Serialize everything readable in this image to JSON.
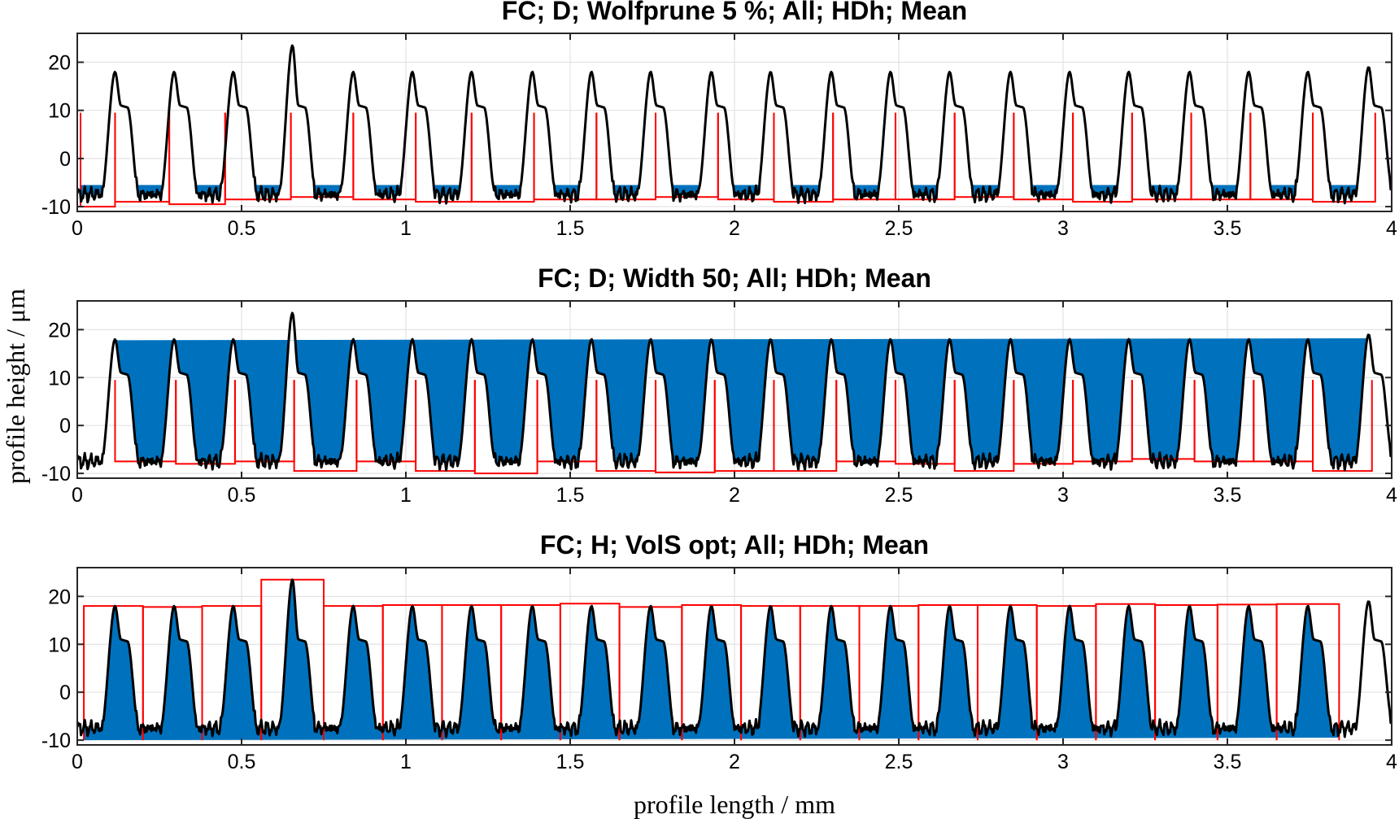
{
  "figure": {
    "ylabel": "profile height / μm",
    "xlabel": "profile length / mm"
  },
  "chart_data": [
    {
      "type": "line",
      "title": "FC; D; Wolfprune 5 %; All; HDh; Mean",
      "xlim": [
        0,
        4
      ],
      "ylim": [
        -11,
        26
      ],
      "xticks": [
        "0",
        "0.5",
        "1",
        "1.5",
        "2",
        "2.5",
        "3",
        "3.5",
        "4"
      ],
      "yticks": [
        "20",
        "10",
        "0",
        "-10"
      ],
      "grid": true,
      "fill": "dales",
      "profile": {
        "peak_x": [
          0.115,
          0.295,
          0.475,
          0.655,
          0.84,
          1.02,
          1.2,
          1.385,
          1.565,
          1.745,
          1.93,
          2.11,
          2.295,
          2.475,
          2.655,
          2.84,
          3.02,
          3.2,
          3.385,
          3.565,
          3.745,
          3.93
        ],
        "peak_height": [
          18,
          18,
          18,
          23.5,
          18,
          18,
          18,
          18,
          18,
          18,
          18,
          18,
          18,
          18,
          18,
          18,
          18,
          18,
          18,
          18,
          18,
          19
        ],
        "shoulder_height": 11,
        "valley_height": -7.5
      },
      "segments": [
        {
          "x0": 0.01,
          "x1": 0.115,
          "level": -10
        },
        {
          "x0": 0.115,
          "x1": 0.28,
          "level": -9
        },
        {
          "x0": 0.28,
          "x1": 0.45,
          "level": -9.5
        },
        {
          "x0": 0.45,
          "x1": 0.65,
          "level": -8.5
        },
        {
          "x0": 0.65,
          "x1": 0.84,
          "level": -8
        },
        {
          "x0": 0.84,
          "x1": 1.03,
          "level": -8.5
        },
        {
          "x0": 1.03,
          "x1": 1.2,
          "level": -9
        },
        {
          "x0": 1.2,
          "x1": 1.39,
          "level": -9
        },
        {
          "x0": 1.39,
          "x1": 1.58,
          "level": -8.5
        },
        {
          "x0": 1.58,
          "x1": 1.76,
          "level": -8.5
        },
        {
          "x0": 1.76,
          "x1": 1.95,
          "level": -8
        },
        {
          "x0": 1.95,
          "x1": 2.12,
          "level": -8.5
        },
        {
          "x0": 2.12,
          "x1": 2.3,
          "level": -9
        },
        {
          "x0": 2.3,
          "x1": 2.49,
          "level": -8.5
        },
        {
          "x0": 2.49,
          "x1": 2.67,
          "level": -8.5
        },
        {
          "x0": 2.67,
          "x1": 2.85,
          "level": -8
        },
        {
          "x0": 2.85,
          "x1": 3.03,
          "level": -8.5
        },
        {
          "x0": 3.03,
          "x1": 3.21,
          "level": -9
        },
        {
          "x0": 3.21,
          "x1": 3.39,
          "level": -8.5
        },
        {
          "x0": 3.39,
          "x1": 3.57,
          "level": -8.5
        },
        {
          "x0": 3.57,
          "x1": 3.76,
          "level": -8.5
        },
        {
          "x0": 3.76,
          "x1": 3.95,
          "level": -9
        }
      ]
    },
    {
      "type": "line",
      "title": "FC; D; Width 50; All; HDh; Mean",
      "xlim": [
        0,
        4
      ],
      "ylim": [
        -11,
        26
      ],
      "xticks": [
        "0",
        "0.5",
        "1",
        "1.5",
        "2",
        "2.5",
        "3",
        "3.5",
        "4"
      ],
      "yticks": [
        "20",
        "10",
        "0",
        "-10"
      ],
      "grid": true,
      "fill": "dales",
      "fill_top": [
        17.8,
        18.2
      ],
      "profile": {
        "peak_x": [
          0.115,
          0.295,
          0.475,
          0.655,
          0.84,
          1.02,
          1.2,
          1.385,
          1.565,
          1.745,
          1.93,
          2.11,
          2.295,
          2.475,
          2.655,
          2.84,
          3.02,
          3.2,
          3.385,
          3.565,
          3.745,
          3.93
        ],
        "peak_height": [
          18,
          18,
          18,
          23.5,
          18,
          18,
          18,
          18,
          18,
          18,
          18,
          18,
          18,
          18,
          18,
          18,
          18,
          18,
          18,
          18,
          18,
          19
        ],
        "shoulder_height": 11,
        "valley_height": -7.5
      },
      "segments": [
        {
          "x0": 0.115,
          "x1": 0.3,
          "level": -7.5
        },
        {
          "x0": 0.3,
          "x1": 0.48,
          "level": -8
        },
        {
          "x0": 0.48,
          "x1": 0.66,
          "level": -7.5
        },
        {
          "x0": 0.66,
          "x1": 0.85,
          "level": -9.5
        },
        {
          "x0": 0.85,
          "x1": 1.03,
          "level": -7.5
        },
        {
          "x0": 1.03,
          "x1": 1.21,
          "level": -9.5
        },
        {
          "x0": 1.21,
          "x1": 1.4,
          "level": -10
        },
        {
          "x0": 1.4,
          "x1": 1.58,
          "level": -7.5
        },
        {
          "x0": 1.58,
          "x1": 1.76,
          "level": -9.5
        },
        {
          "x0": 1.76,
          "x1": 1.94,
          "level": -9.8
        },
        {
          "x0": 1.94,
          "x1": 2.12,
          "level": -9.5
        },
        {
          "x0": 2.12,
          "x1": 2.31,
          "level": -9.5
        },
        {
          "x0": 2.31,
          "x1": 2.49,
          "level": -7.5
        },
        {
          "x0": 2.49,
          "x1": 2.67,
          "level": -8
        },
        {
          "x0": 2.67,
          "x1": 2.85,
          "level": -9.5
        },
        {
          "x0": 2.85,
          "x1": 3.03,
          "level": -8
        },
        {
          "x0": 3.03,
          "x1": 3.21,
          "level": -7.5
        },
        {
          "x0": 3.21,
          "x1": 3.4,
          "level": -7
        },
        {
          "x0": 3.4,
          "x1": 3.58,
          "level": -7.5
        },
        {
          "x0": 3.58,
          "x1": 3.76,
          "level": -7.5
        },
        {
          "x0": 3.76,
          "x1": 3.94,
          "level": -9.5
        }
      ]
    },
    {
      "type": "line",
      "title": "FC; H; VolS opt; All; HDh; Mean",
      "xlim": [
        0,
        4
      ],
      "ylim": [
        -11,
        26
      ],
      "xticks": [
        "0",
        "0.5",
        "1",
        "1.5",
        "2",
        "2.5",
        "3",
        "3.5",
        "4"
      ],
      "yticks": [
        "20",
        "10",
        "0",
        "-10"
      ],
      "grid": true,
      "fill": "hills",
      "fill_bottom": [
        -10,
        -9.5
      ],
      "fill_end_x": 3.84,
      "profile": {
        "peak_x": [
          0.115,
          0.295,
          0.475,
          0.655,
          0.84,
          1.02,
          1.2,
          1.385,
          1.565,
          1.745,
          1.93,
          2.11,
          2.295,
          2.475,
          2.655,
          2.84,
          3.02,
          3.2,
          3.385,
          3.565,
          3.745,
          3.93
        ],
        "peak_height": [
          18,
          18,
          18,
          23.5,
          18,
          18,
          18,
          18,
          18,
          18,
          18,
          18,
          18,
          18,
          18,
          18,
          18,
          18,
          18,
          18,
          18,
          19
        ],
        "shoulder_height": 11,
        "valley_height": -7.5
      },
      "segments": [
        {
          "x0": 0.02,
          "x1": 0.2,
          "level": 18
        },
        {
          "x0": 0.2,
          "x1": 0.38,
          "level": 17.8
        },
        {
          "x0": 0.38,
          "x1": 0.56,
          "level": 18
        },
        {
          "x0": 0.56,
          "x1": 0.75,
          "level": 23.5
        },
        {
          "x0": 0.75,
          "x1": 0.93,
          "level": 18
        },
        {
          "x0": 0.93,
          "x1": 1.11,
          "level": 18.2
        },
        {
          "x0": 1.11,
          "x1": 1.29,
          "level": 18.2
        },
        {
          "x0": 1.29,
          "x1": 1.47,
          "level": 18.2
        },
        {
          "x0": 1.47,
          "x1": 1.65,
          "level": 18.5
        },
        {
          "x0": 1.65,
          "x1": 1.84,
          "level": 17.8
        },
        {
          "x0": 1.84,
          "x1": 2.02,
          "level": 18.2
        },
        {
          "x0": 2.02,
          "x1": 2.2,
          "level": 18
        },
        {
          "x0": 2.2,
          "x1": 2.38,
          "level": 18
        },
        {
          "x0": 2.38,
          "x1": 2.56,
          "level": 18
        },
        {
          "x0": 2.56,
          "x1": 2.74,
          "level": 18.2
        },
        {
          "x0": 2.74,
          "x1": 2.92,
          "level": 18.2
        },
        {
          "x0": 2.92,
          "x1": 3.1,
          "level": 18
        },
        {
          "x0": 3.1,
          "x1": 3.28,
          "level": 18.4
        },
        {
          "x0": 3.28,
          "x1": 3.47,
          "level": 18.2
        },
        {
          "x0": 3.47,
          "x1": 3.65,
          "level": 18.3
        },
        {
          "x0": 3.65,
          "x1": 3.84,
          "level": 18.4
        }
      ]
    }
  ],
  "colors": {
    "profile": "#000000",
    "segments": "#ff0000",
    "fill": "#0072bd",
    "grid": "#e3e3e3",
    "axes": "#262626"
  }
}
